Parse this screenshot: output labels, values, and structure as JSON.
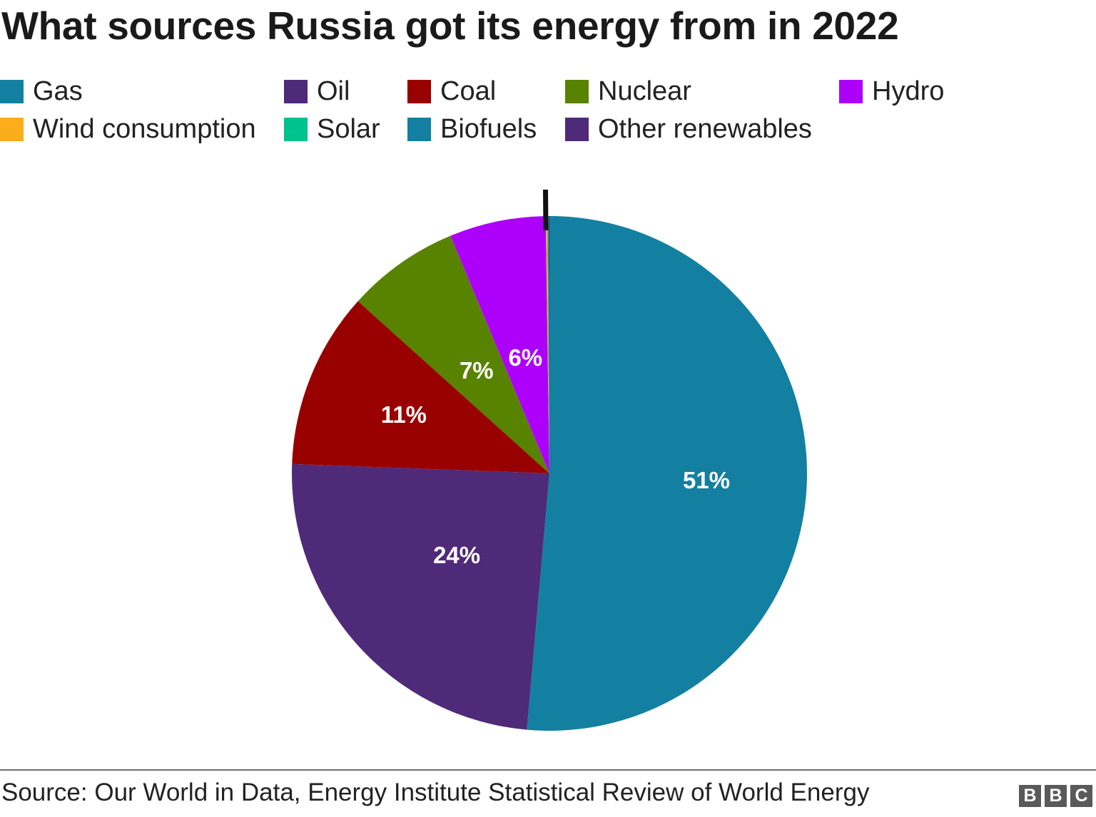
{
  "chart_data": {
    "type": "pie",
    "title": "What sources Russia got its energy from in 2022",
    "source": "Source: Our World in Data, Energy Institute Statistical Review of World Energy",
    "logo_letters": [
      "B",
      "B",
      "C"
    ],
    "unit": "%",
    "legend_position": "top",
    "start": "12 o'clock",
    "direction": "clockwise",
    "slices": [
      {
        "name": "Gas",
        "value": 51,
        "label": "51%",
        "color": "#1380a1"
      },
      {
        "name": "Oil",
        "value": 24,
        "label": "24%",
        "color": "#4e2a79"
      },
      {
        "name": "Coal",
        "value": 11,
        "label": "11%",
        "color": "#990000"
      },
      {
        "name": "Nuclear",
        "value": 7,
        "label": "7%",
        "color": "#588300"
      },
      {
        "name": "Hydro",
        "value": 6,
        "label": "6%",
        "color": "#ad00fa"
      },
      {
        "name": "Wind consumption",
        "value": 0.1,
        "label": "",
        "color": "#fcad1c"
      },
      {
        "name": "Solar",
        "value": 0.05,
        "label": "",
        "color": "#00c28c"
      },
      {
        "name": "Biofuels",
        "value": 0.03,
        "label": "",
        "color": "#1380a1"
      },
      {
        "name": "Other renewables",
        "value": 0.05,
        "label": "",
        "color": "#4e2a79"
      }
    ]
  }
}
